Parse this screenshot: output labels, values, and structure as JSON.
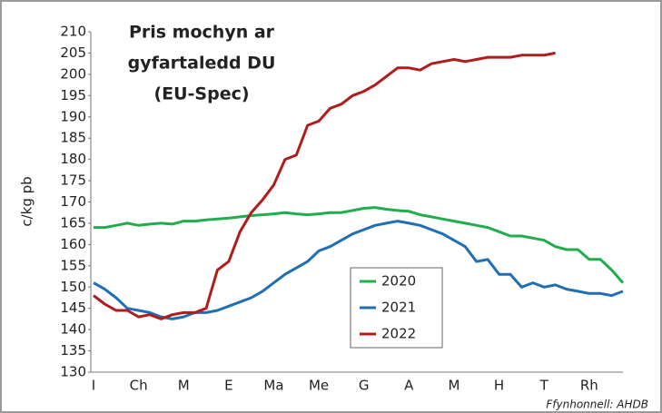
{
  "chart_data": {
    "type": "line",
    "title": [
      "Pris mochyn ar",
      "gyfartaledd DU",
      "(EU-Spec)"
    ],
    "y_label": "c/kg pb",
    "source": "Ffynhonnell: AHDB",
    "categories": [
      "I",
      null,
      null,
      null,
      "Ch",
      null,
      null,
      null,
      "M",
      null,
      null,
      null,
      "E",
      null,
      null,
      null,
      "Ma",
      null,
      null,
      null,
      "Me",
      null,
      null,
      null,
      "G",
      null,
      null,
      null,
      "A",
      null,
      null,
      null,
      "M",
      null,
      null,
      null,
      "H",
      null,
      null,
      null,
      "T",
      null,
      null,
      null,
      "Rh",
      null,
      null,
      null
    ],
    "series": [
      {
        "name": "2020",
        "color": "#1fae4b",
        "values": [
          164,
          164,
          164.5,
          165,
          164.5,
          164.8,
          165,
          164.8,
          165.5,
          165.5,
          165.8,
          166,
          166.2,
          166.5,
          166.8,
          167,
          167.2,
          167.5,
          167.2,
          167,
          167.2,
          167.5,
          167.5,
          168,
          168.5,
          168.7,
          168.3,
          168,
          167.8,
          167,
          166.5,
          166,
          165.5,
          165,
          164.5,
          164,
          163,
          162,
          162,
          161.5,
          161,
          159.5,
          158.8,
          158.8,
          156.5,
          156.5,
          154,
          151
        ]
      },
      {
        "name": "2021",
        "color": "#1f6fb5",
        "values": [
          151,
          149.5,
          147.5,
          145,
          144.5,
          144,
          143,
          142.5,
          143,
          144,
          144,
          144.5,
          145.5,
          146.5,
          147.5,
          149,
          151,
          153,
          154.5,
          156,
          158.5,
          159.5,
          161,
          162.5,
          163.5,
          164.5,
          165,
          165.5,
          165,
          164.5,
          163.5,
          162.5,
          161,
          159.5,
          156,
          156.5,
          153,
          153,
          150,
          151,
          150,
          150.5,
          149.5,
          149,
          148.5,
          148.5,
          148,
          149
        ]
      },
      {
        "name": "2022",
        "color": "#b01c1c",
        "values": [
          148,
          146,
          144.5,
          144.5,
          143,
          143.5,
          142.5,
          143.5,
          144,
          144,
          145,
          154,
          156,
          163,
          167.5,
          170.5,
          174,
          180,
          181,
          188,
          189,
          192,
          193,
          195,
          196,
          197.5,
          199.5,
          201.5,
          201.5,
          201,
          202.5,
          203,
          203.5,
          203,
          203.5,
          204,
          204,
          204,
          204.5,
          204.5,
          204.5,
          205,
          null,
          null,
          null,
          null,
          null,
          null
        ]
      }
    ],
    "ylim": [
      130,
      210
    ],
    "yticks": [
      130,
      135,
      140,
      145,
      150,
      155,
      160,
      165,
      170,
      175,
      180,
      185,
      190,
      195,
      200,
      205,
      210
    ],
    "grid": false
  }
}
